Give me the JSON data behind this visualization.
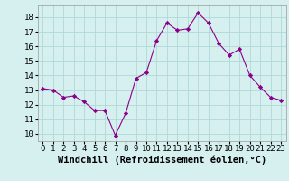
{
  "x": [
    0,
    1,
    2,
    3,
    4,
    5,
    6,
    7,
    8,
    9,
    10,
    11,
    12,
    13,
    14,
    15,
    16,
    17,
    18,
    19,
    20,
    21,
    22,
    23
  ],
  "y": [
    13.1,
    13.0,
    12.5,
    12.6,
    12.2,
    11.6,
    11.6,
    9.9,
    11.4,
    13.8,
    14.2,
    16.4,
    17.6,
    17.1,
    17.2,
    18.3,
    17.6,
    16.2,
    15.4,
    15.8,
    14.0,
    13.2,
    12.5,
    12.3
  ],
  "line_color": "#8B008B",
  "marker": "D",
  "marker_size": 2.2,
  "bg_color": "#d6f0ef",
  "grid_color": "#b0d8d8",
  "xlabel": "Windchill (Refroidissement éolien,°C)",
  "xlabel_fontsize": 7.5,
  "tick_fontsize": 6.5,
  "ylim": [
    9.5,
    18.8
  ],
  "yticks": [
    10,
    11,
    12,
    13,
    14,
    15,
    16,
    17,
    18
  ],
  "xticks": [
    0,
    1,
    2,
    3,
    4,
    5,
    6,
    7,
    8,
    9,
    10,
    11,
    12,
    13,
    14,
    15,
    16,
    17,
    18,
    19,
    20,
    21,
    22,
    23
  ]
}
